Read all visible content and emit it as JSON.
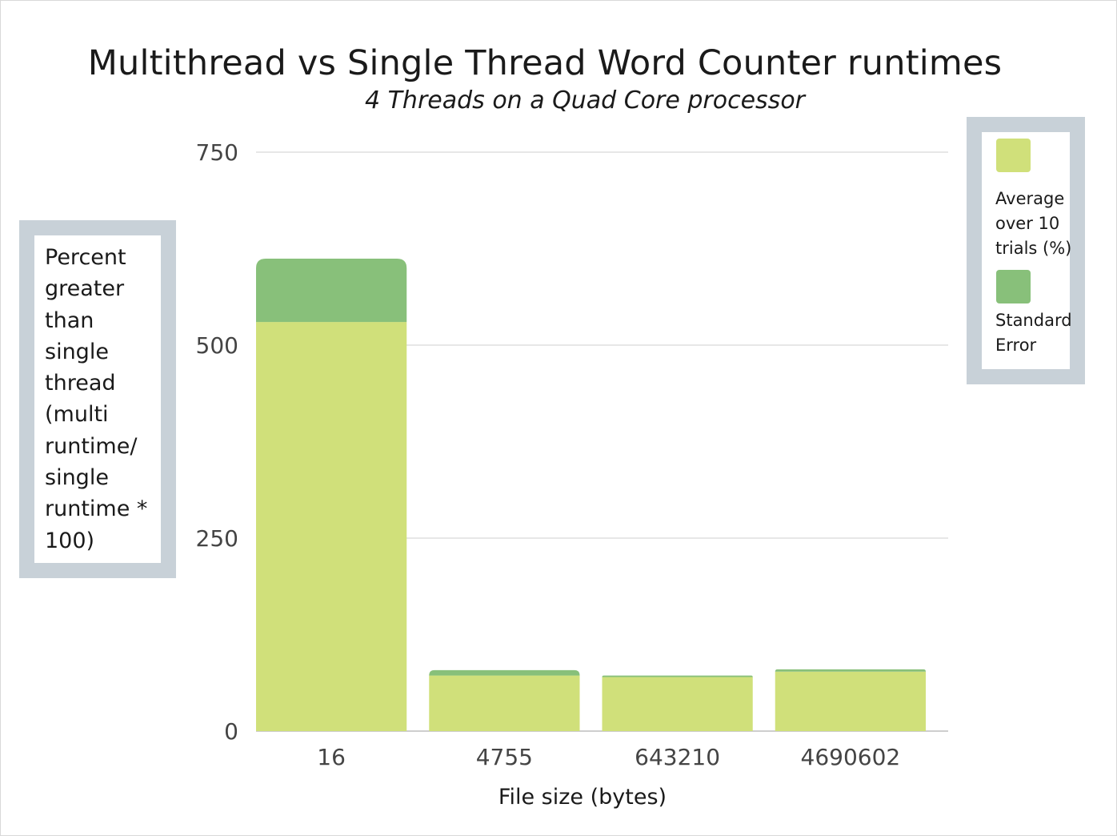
{
  "chart_data": {
    "type": "bar",
    "stacked": true,
    "title": "Multithread vs Single Thread Word Counter runtimes",
    "subtitle": "4 Threads on a Quad Core processor",
    "xlabel": "File size (bytes)",
    "ylabel": "Percent greater than single thread (multi runtime/ single runtime * 100)",
    "categories": [
      "16",
      "4755",
      "643210",
      "4690602"
    ],
    "series": [
      {
        "name": "Average over 10 trials (%)",
        "values": [
          530,
          72,
          70,
          77
        ],
        "color": "#d0e07a"
      },
      {
        "name": "Standard Error",
        "values": [
          82,
          7,
          2,
          3
        ],
        "color": "#88c07a"
      }
    ],
    "ylim": [
      0,
      750
    ],
    "yticks": [
      0,
      250,
      500,
      750
    ],
    "grid": true,
    "legend_position": "right"
  },
  "legend": {
    "items": [
      {
        "label": "Average over 10 trials (%)",
        "color": "#d0e07a"
      },
      {
        "label": "Standard Error",
        "color": "#88c07a"
      }
    ]
  }
}
